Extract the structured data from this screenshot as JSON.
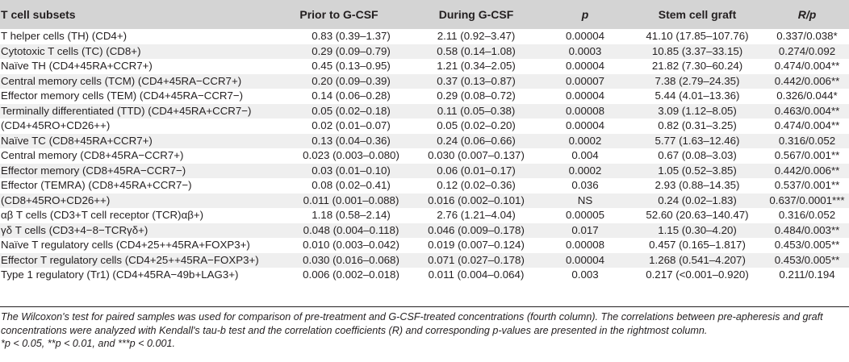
{
  "table": {
    "headers": [
      "T cell subsets",
      "Prior to G-CSF",
      "During G-CSF",
      "p",
      "Stem cell graft",
      "R/p"
    ],
    "rows": [
      {
        "name": "T helper cells (TH) (CD4+)",
        "prior": "0.83 (0.39–1.37)",
        "during": "2.11 (0.92–3.47)",
        "p": "0.00004",
        "graft": "41.10 (17.85–107.76)",
        "rp": "0.337/0.038*"
      },
      {
        "name": "Cytotoxic T cells (TC) (CD8+)",
        "prior": "0.29 (0.09–0.79)",
        "during": "0.58 (0.14–1.08)",
        "p": "0.0003",
        "graft": "10.85 (3.37–33.15)",
        "rp": "0.274/0.092"
      },
      {
        "name": "Naïve TH (CD4+45RA+CCR7+)",
        "prior": "0.45 (0.13–0.95)",
        "during": "1.21 (0.34–2.05)",
        "p": "0.00004",
        "graft": "21.82 (7.30–60.24)",
        "rp": "0.474/0.004**"
      },
      {
        "name": "Central memory cells (TCM) (CD4+45RA−CCR7+)",
        "prior": "0.20 (0.09–0.39)",
        "during": "0.37 (0.13–0.87)",
        "p": "0.00007",
        "graft": "7.38 (2.79–24.35)",
        "rp": "0.442/0.006**"
      },
      {
        "name": "Effector memory cells (TEM) (CD4+45RA−CCR7−)",
        "prior": "0.14 (0.06–0.28)",
        "during": "0.29 (0.08–0.72)",
        "p": "0.00004",
        "graft": "5.44 (4.01–13.36)",
        "rp": "0.326/0.044*"
      },
      {
        "name": "Terminally differentiated (TTD) (CD4+45RA+CCR7−)",
        "prior": "0.05 (0.02–0.18)",
        "during": "0.11 (0.05–0.38)",
        "p": "0.00008",
        "graft": "3.09 (1.12–8.05)",
        "rp": "0.463/0.004**"
      },
      {
        "name": "(CD4+45RO+CD26++)",
        "prior": "0.02 (0.01–0.07)",
        "during": "0.05 (0.02–0.20)",
        "p": "0.00004",
        "graft": "0.82 (0.31–3.25)",
        "rp": "0.474/0.004**"
      },
      {
        "name": "Naïve TC (CD8+45RA+CCR7+)",
        "prior": "0.13 (0.04–0.36)",
        "during": "0.24 (0.06–0.66)",
        "p": "0.0002",
        "graft": "5.77 (1.63–12.46)",
        "rp": "0.316/0.052"
      },
      {
        "name": "Central memory (CD8+45RA−CCR7+)",
        "prior": "0.023 (0.003–0.080)",
        "during": "0.030 (0.007–0.137)",
        "p": "0.004",
        "graft": "0.67 (0.08–3.03)",
        "rp": "0.567/0.001**"
      },
      {
        "name": "Effector memory (CD8+45RA−CCR7−)",
        "prior": "0.03 (0.01–0.10)",
        "during": "0.06 (0.01–0.17)",
        "p": "0.0002",
        "graft": "1.05 (0.52–3.85)",
        "rp": "0.442/0.006**"
      },
      {
        "name": "Effector (TEMRA) (CD8+45RA+CCR7−)",
        "prior": "0.08 (0.02–0.41)",
        "during": "0.12 (0.02–0.36)",
        "p": "0.036",
        "graft": "2.93 (0.88–14.35)",
        "rp": "0.537/0.001**"
      },
      {
        "name": "(CD8+45RO+CD26++)",
        "prior": "0.011 (0.001–0.088)",
        "during": "0.016 (0.002–0.101)",
        "p": "NS",
        "graft": "0.24 (0.02–1.83)",
        "rp": "0.637/0.0001***"
      },
      {
        "name": "αβ T cells (CD3+T cell receptor (TCR)αβ+)",
        "prior": "1.18 (0.58–2.14)",
        "during": "2.76 (1.21–4.04)",
        "p": "0.00005",
        "graft": "52.60 (20.63–140.47)",
        "rp": "0.316/0.052"
      },
      {
        "name": "γδ T cells (CD3+4−8−TCRγδ+)",
        "prior": "0.048 (0.004–0.118)",
        "during": "0.046 (0.009–0.178)",
        "p": "0.017",
        "graft": "1.15 (0.30–4.20)",
        "rp": "0.484/0.003**"
      },
      {
        "name": "Naïve T regulatory cells (CD4+25++45RA+FOXP3+)",
        "prior": "0.010 (0.003–0.042)",
        "during": "0.019 (0.007–0.124)",
        "p": "0.00008",
        "graft": "0.457 (0.165–1.817)",
        "rp": "0.453/0.005**"
      },
      {
        "name": "Effector T regulatory cells (CD4+25++45RA−FOXP3+)",
        "prior": "0.030 (0.016–0.068)",
        "during": "0.071 (0.027–0.178)",
        "p": "0.00004",
        "graft": "1.268 (0.541–4.207)",
        "rp": "0.453/0.005**"
      },
      {
        "name": "Type 1 regulatory (Tr1) (CD4+45RA−49b+LAG3+)",
        "prior": "0.006 (0.002–0.018)",
        "during": "0.011 (0.004–0.064)",
        "p": "0.003",
        "graft": "0.217 (<0.001–0.920)",
        "rp": "0.211/0.194"
      }
    ]
  },
  "footnotes": {
    "line1": "The Wilcoxon's test for paired samples was used for comparison of pre-treatment and G-CSF-treated concentrations (fourth column). The correlations between pre-apheresis and graft concentrations were analyzed with Kendall's tau-b test and the correlation coefficients (R) and corresponding p-values are presented in the rightmost column.",
    "line2": "*p < 0.05, **p < 0.01, and ***p < 0.001."
  }
}
